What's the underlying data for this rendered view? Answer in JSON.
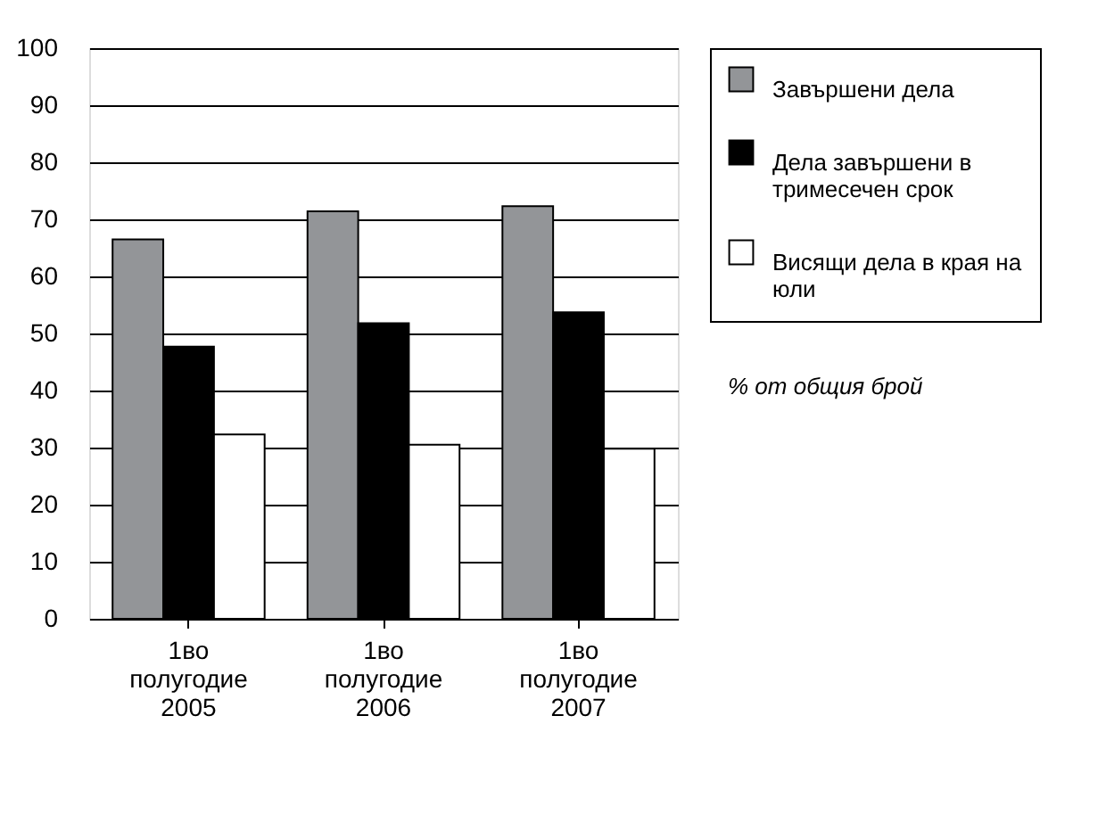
{
  "chart_data": {
    "type": "bar",
    "categories": [
      "1во полугодие 2005",
      "1во полугодие 2006",
      "1во полугодие 2007"
    ],
    "series": [
      {
        "name": "Завършени дела",
        "color": "#939598",
        "values": [
          66.5,
          71.4,
          72.3
        ]
      },
      {
        "name": "Дела завършени в тримесечен срок",
        "color": "#000000",
        "values": [
          47.7,
          51.8,
          53.7
        ]
      },
      {
        "name": "Висящи дела в края на юли",
        "color": "#ffffff",
        "values": [
          32.3,
          30.5,
          29.8
        ]
      }
    ],
    "ylim": [
      0,
      100
    ],
    "yticks": [
      0,
      10,
      20,
      30,
      40,
      50,
      60,
      70,
      80,
      90,
      100
    ],
    "grid": "y",
    "legend": "right",
    "annotations": [
      "% от общия брой"
    ]
  }
}
